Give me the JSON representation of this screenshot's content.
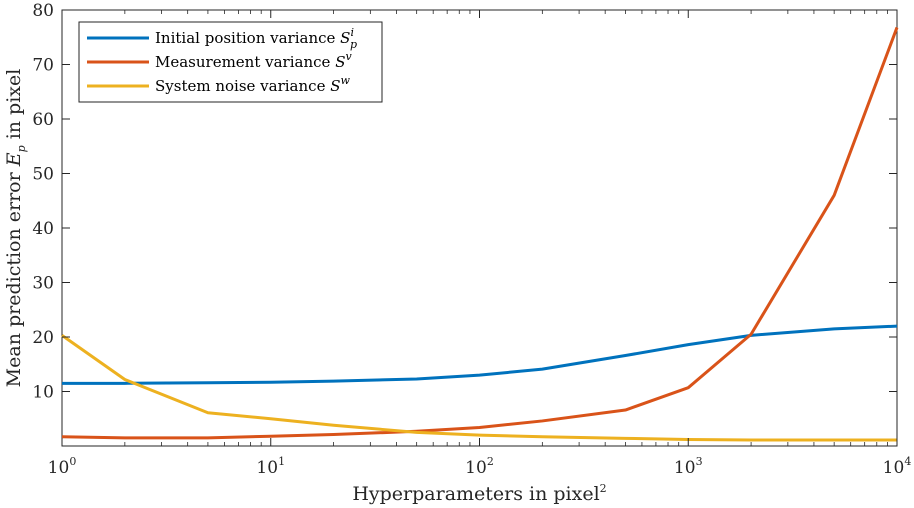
{
  "chart_data": {
    "type": "line",
    "xscale": "log",
    "xlim": [
      1,
      10000
    ],
    "ylim": [
      0,
      80
    ],
    "xticks": [
      {
        "value": 1,
        "base": "10",
        "exp": "0"
      },
      {
        "value": 10,
        "base": "10",
        "exp": "1"
      },
      {
        "value": 100,
        "base": "10",
        "exp": "2"
      },
      {
        "value": 1000,
        "base": "10",
        "exp": "3"
      },
      {
        "value": 10000,
        "base": "10",
        "exp": "4"
      }
    ],
    "yticks": [
      10,
      20,
      30,
      40,
      50,
      60,
      70,
      80
    ],
    "xlabel": {
      "text": "Hyperparameters in pixel",
      "sup": "2"
    },
    "ylabel": {
      "prefix": "Mean prediction error ",
      "var": "E",
      "sub": "p",
      "suffix": " in pixel"
    },
    "grid": false,
    "legend_position": "top-left",
    "series": [
      {
        "name": "Initial position variance ",
        "symbol": "S",
        "sup": "i",
        "sub": "p",
        "color": "#0072BD",
        "x": [
          1,
          2,
          5,
          10,
          20,
          50,
          100,
          200,
          500,
          1000,
          2000,
          5000,
          10000
        ],
        "y": [
          11.5,
          11.5,
          11.6,
          11.7,
          11.9,
          12.3,
          13.0,
          14.1,
          16.6,
          18.6,
          20.3,
          21.5,
          22.0
        ]
      },
      {
        "name": "Measurement variance ",
        "symbol": "S",
        "sup": "v",
        "sub": "",
        "color": "#D95319",
        "x": [
          1,
          2,
          5,
          10,
          20,
          50,
          100,
          200,
          500,
          1000,
          2000,
          5000,
          10000
        ],
        "y": [
          1.7,
          1.5,
          1.5,
          1.8,
          2.1,
          2.7,
          3.4,
          4.6,
          6.6,
          10.7,
          20.5,
          46.0,
          76.8
        ]
      },
      {
        "name": "System noise variance ",
        "symbol": "S",
        "sup": "w",
        "sub": "",
        "color": "#EDB120",
        "x": [
          1,
          2,
          5,
          10,
          20,
          50,
          100,
          200,
          500,
          1000,
          2000,
          5000,
          10000
        ],
        "y": [
          20.3,
          12.2,
          6.1,
          5.0,
          3.8,
          2.5,
          2.0,
          1.7,
          1.4,
          1.2,
          1.1,
          1.1,
          1.1
        ]
      }
    ]
  }
}
